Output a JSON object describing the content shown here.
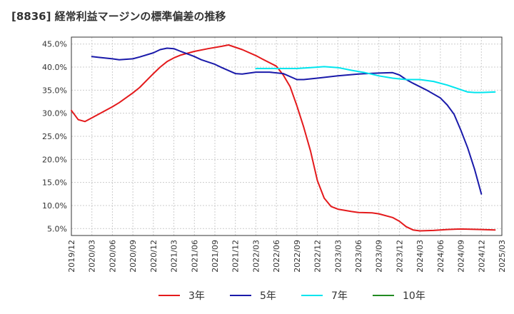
{
  "chart_data": {
    "type": "line",
    "title": "[8836]  経常利益マージンの標準偏差の推移",
    "xlabel": "",
    "ylabel": "",
    "x_ticks": [
      "2019/12",
      "2020/03",
      "2020/06",
      "2020/09",
      "2020/12",
      "2021/03",
      "2021/06",
      "2021/09",
      "2021/12",
      "2022/03",
      "2022/06",
      "2022/09",
      "2022/12",
      "2023/03",
      "2023/06",
      "2023/09",
      "2023/12",
      "2024/03",
      "2024/06",
      "2024/09",
      "2024/12",
      "2025/03"
    ],
    "y_ticks": [
      "5.0%",
      "10.0%",
      "15.0%",
      "20.0%",
      "25.0%",
      "30.0%",
      "35.0%",
      "40.0%",
      "45.0%"
    ],
    "xlim": [
      "2019/12",
      "2025/03"
    ],
    "ylim": [
      3.5,
      46.5
    ],
    "grid": true,
    "legend_position": "bottom",
    "series": [
      {
        "name": "3年",
        "color": "#e41a1c",
        "points": [
          [
            "2019/12",
            30.6
          ],
          [
            "2020/01",
            28.6
          ],
          [
            "2020/02",
            28.2
          ],
          [
            "2020/03",
            29.0
          ],
          [
            "2020/05",
            30.6
          ],
          [
            "2020/06",
            31.4
          ],
          [
            "2020/07",
            32.3
          ],
          [
            "2020/09",
            34.4
          ],
          [
            "2020/10",
            35.6
          ],
          [
            "2020/12",
            38.6
          ],
          [
            "2021/01",
            40.0
          ],
          [
            "2021/02",
            41.2
          ],
          [
            "2021/03",
            42.0
          ],
          [
            "2021/04",
            42.6
          ],
          [
            "2021/06",
            43.4
          ],
          [
            "2021/08",
            44.0
          ],
          [
            "2021/10",
            44.5
          ],
          [
            "2021/11",
            44.8
          ],
          [
            "2022/01",
            43.8
          ],
          [
            "2022/03",
            42.5
          ],
          [
            "2022/04",
            41.7
          ],
          [
            "2022/06",
            40.2
          ],
          [
            "2022/07",
            38.3
          ],
          [
            "2022/08",
            35.8
          ],
          [
            "2022/09",
            31.6
          ],
          [
            "2022/10",
            27.0
          ],
          [
            "2022/11",
            21.8
          ],
          [
            "2022/12",
            15.4
          ],
          [
            "2023/01",
            11.6
          ],
          [
            "2023/02",
            9.8
          ],
          [
            "2023/03",
            9.2
          ],
          [
            "2023/05",
            8.7
          ],
          [
            "2023/06",
            8.5
          ],
          [
            "2023/08",
            8.4
          ],
          [
            "2023/09",
            8.2
          ],
          [
            "2023/11",
            7.4
          ],
          [
            "2023/12",
            6.6
          ],
          [
            "2024/01",
            5.4
          ],
          [
            "2024/02",
            4.7
          ],
          [
            "2024/03",
            4.5
          ],
          [
            "2024/05",
            4.6
          ],
          [
            "2024/07",
            4.8
          ],
          [
            "2024/09",
            4.9
          ],
          [
            "2024/12",
            4.8
          ],
          [
            "2025/02",
            4.7
          ]
        ]
      },
      {
        "name": "5年",
        "color": "#1a1aaa",
        "points": [
          [
            "2020/03",
            42.3
          ],
          [
            "2020/04",
            42.1
          ],
          [
            "2020/06",
            41.8
          ],
          [
            "2020/07",
            41.6
          ],
          [
            "2020/09",
            41.8
          ],
          [
            "2020/10",
            42.2
          ],
          [
            "2020/12",
            43.1
          ],
          [
            "2021/01",
            43.8
          ],
          [
            "2021/02",
            44.1
          ],
          [
            "2021/03",
            44.0
          ],
          [
            "2021/04",
            43.4
          ],
          [
            "2021/06",
            42.3
          ],
          [
            "2021/07",
            41.6
          ],
          [
            "2021/09",
            40.6
          ],
          [
            "2021/10",
            39.9
          ],
          [
            "2021/12",
            38.6
          ],
          [
            "2022/01",
            38.5
          ],
          [
            "2022/03",
            38.9
          ],
          [
            "2022/05",
            38.9
          ],
          [
            "2022/07",
            38.6
          ],
          [
            "2022/09",
            37.3
          ],
          [
            "2022/10",
            37.3
          ],
          [
            "2022/12",
            37.6
          ],
          [
            "2023/03",
            38.1
          ],
          [
            "2023/06",
            38.5
          ],
          [
            "2023/09",
            38.7
          ],
          [
            "2023/11",
            38.8
          ],
          [
            "2023/12",
            38.3
          ],
          [
            "2024/01",
            37.3
          ],
          [
            "2024/02",
            36.5
          ],
          [
            "2024/04",
            35.0
          ],
          [
            "2024/06",
            33.3
          ],
          [
            "2024/07",
            31.8
          ],
          [
            "2024/08",
            29.8
          ],
          [
            "2024/09",
            26.3
          ],
          [
            "2024/10",
            22.5
          ],
          [
            "2024/11",
            17.9
          ],
          [
            "2024/12",
            12.5
          ]
        ]
      },
      {
        "name": "7年",
        "color": "#00e5ee",
        "points": [
          [
            "2022/03",
            39.7
          ],
          [
            "2022/06",
            39.7
          ],
          [
            "2022/09",
            39.7
          ],
          [
            "2022/11",
            39.9
          ],
          [
            "2023/01",
            40.1
          ],
          [
            "2023/03",
            39.9
          ],
          [
            "2023/05",
            39.3
          ],
          [
            "2023/07",
            38.8
          ],
          [
            "2023/09",
            38.1
          ],
          [
            "2023/11",
            37.6
          ],
          [
            "2024/01",
            37.3
          ],
          [
            "2024/03",
            37.3
          ],
          [
            "2024/05",
            36.9
          ],
          [
            "2024/07",
            36.1
          ],
          [
            "2024/09",
            35.1
          ],
          [
            "2024/10",
            34.6
          ],
          [
            "2024/11",
            34.5
          ],
          [
            "2024/12",
            34.5
          ],
          [
            "2025/02",
            34.6
          ]
        ]
      },
      {
        "name": "10年",
        "color": "#228b22",
        "points": []
      }
    ]
  }
}
